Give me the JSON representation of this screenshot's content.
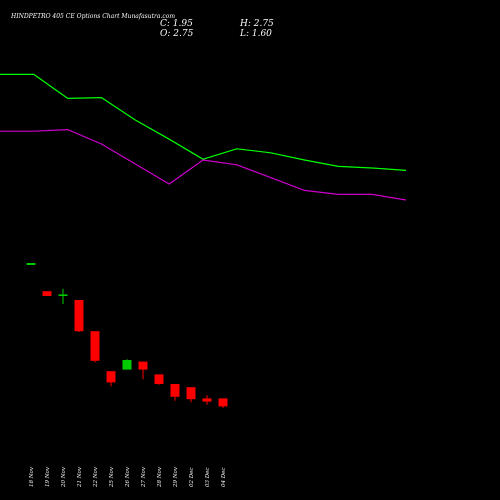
{
  "header": {
    "title": "HINDPETRO 405 CE Options Chart Munafasutra.com",
    "c_text": "C: 1.95",
    "o_text": "O: 2.75",
    "h_text": "H: 2.75",
    "l_text": "L: 1.60"
  },
  "chart_data": {
    "type": "candlestick",
    "categories": [
      "18 Nov",
      "19 Nov",
      "20 Nov",
      "21 Nov",
      "22 Nov",
      "25 Nov",
      "26 Nov",
      "27 Nov",
      "28 Nov",
      "29 Nov",
      "02 Dec",
      "03 Dec",
      "04 Dec"
    ],
    "candles": [
      {
        "o": 15.0,
        "h": 15.0,
        "l": 15.0,
        "c": 15.0,
        "color": "#00cc00"
      },
      {
        "o": 11.6,
        "h": 11.6,
        "l": 11.0,
        "c": 11.0,
        "color": "#ff0000"
      },
      {
        "o": 11.0,
        "h": 11.9,
        "l": 10.0,
        "c": 11.2,
        "color": "#00cc00"
      },
      {
        "o": 10.5,
        "h": 10.5,
        "l": 6.5,
        "c": 6.6,
        "color": "#ff0000"
      },
      {
        "o": 6.6,
        "h": 6.6,
        "l": 2.7,
        "c": 2.9,
        "color": "#ff0000"
      },
      {
        "o": 1.6,
        "h": 1.6,
        "l": -0.3,
        "c": 0.2,
        "color": "#ff0000"
      },
      {
        "o": 1.8,
        "h": 3.1,
        "l": 1.8,
        "c": 3.0,
        "color": "#00cc00"
      },
      {
        "o": 2.8,
        "h": 2.8,
        "l": 0.6,
        "c": 1.8,
        "color": "#ff0000"
      },
      {
        "o": 1.2,
        "h": 1.2,
        "l": -0.1,
        "c": 0.0,
        "color": "#ff0000"
      },
      {
        "o": 0.0,
        "h": 0.0,
        "l": -2.1,
        "c": -1.6,
        "color": "#ff0000"
      },
      {
        "o": -0.4,
        "h": -0.4,
        "l": -2.3,
        "c": -1.9,
        "color": "#ff0000"
      },
      {
        "o": -1.8,
        "h": -1.4,
        "l": -2.6,
        "c": -2.2,
        "color": "#ff0000"
      },
      {
        "o": -1.8,
        "h": -1.8,
        "l": -3.0,
        "c": -2.8,
        "color": "#ff0000"
      }
    ],
    "series": [
      {
        "color": "#00ff00",
        "values": [
          38.7,
          38.7,
          35.7,
          35.8,
          33.0,
          30.6,
          28.1,
          29.4,
          28.9,
          28.0,
          27.2,
          27.0,
          26.7
        ]
      },
      {
        "color": "#cc00cc",
        "values": [
          31.6,
          31.6,
          31.8,
          30.0,
          27.5,
          25.0,
          28.0,
          27.4,
          25.8,
          24.2,
          23.7,
          23.7,
          23.0
        ]
      }
    ],
    "ylim": [
      -12,
      43
    ]
  }
}
